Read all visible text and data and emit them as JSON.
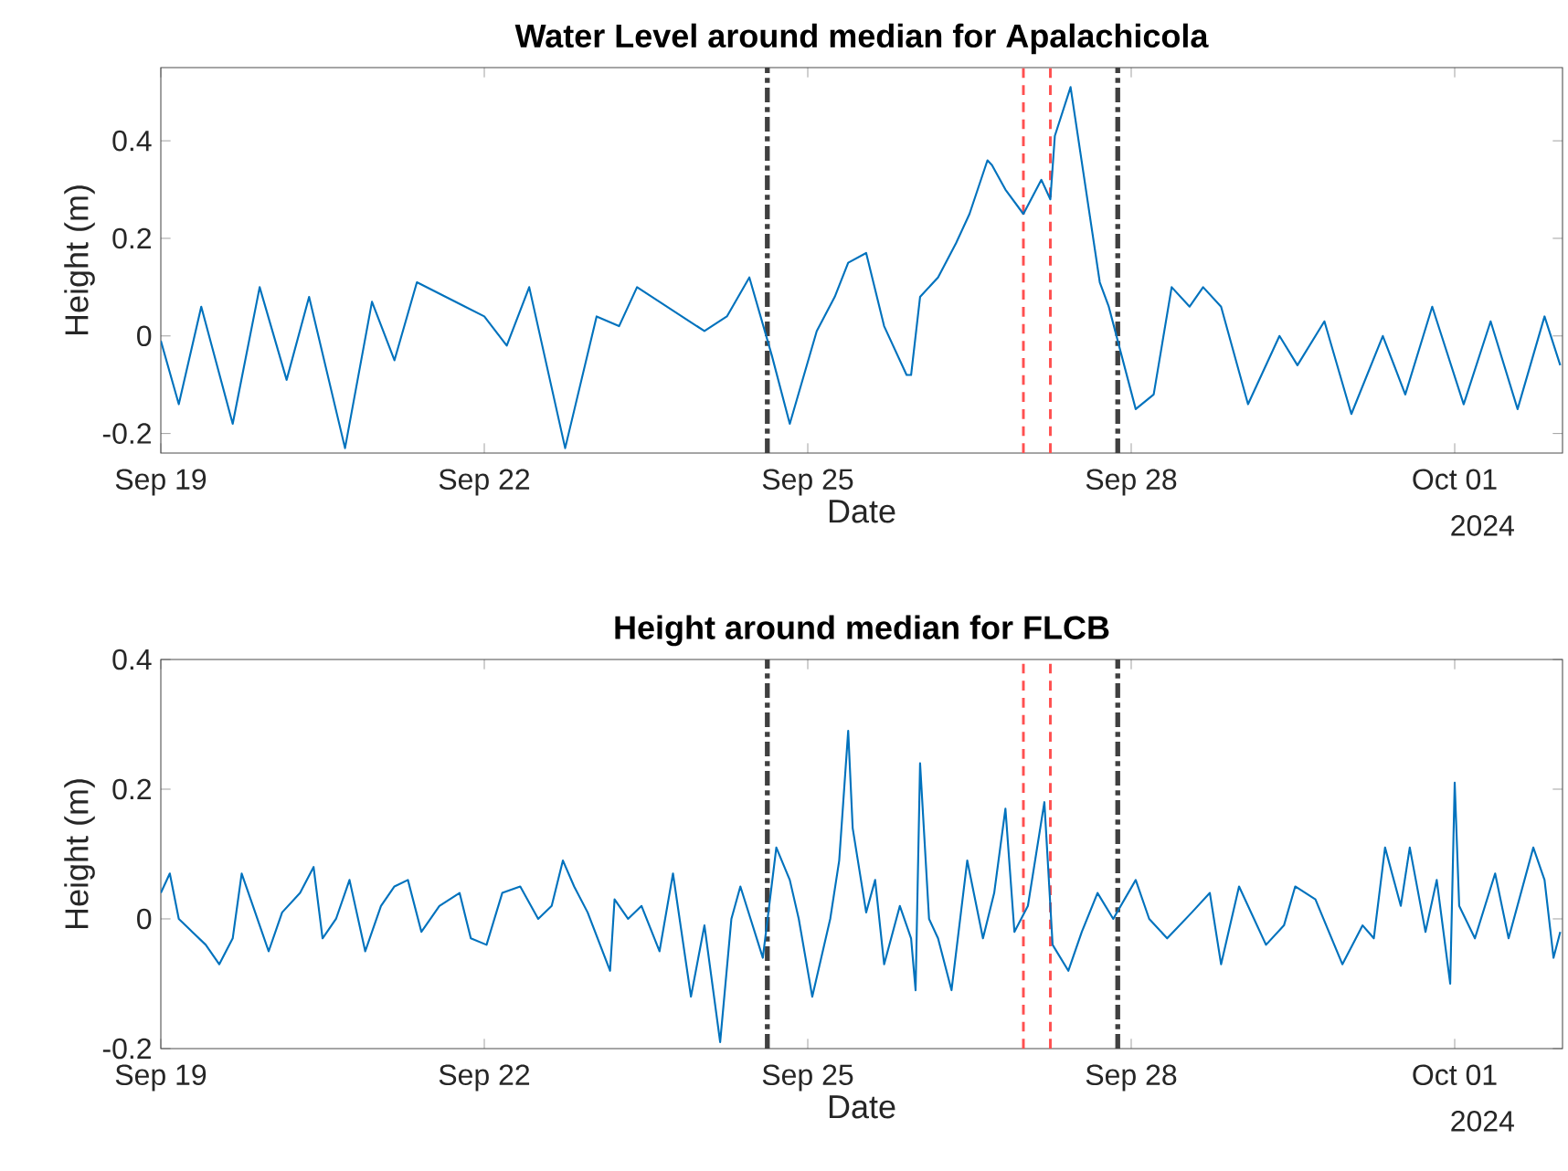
{
  "chart_data": [
    {
      "type": "line",
      "title": "Water Level around median for Apalachicola",
      "xlabel": "Date",
      "ylabel": "Height (m)",
      "color": "#0072bd",
      "x": [
        "2024-09-19T00:00",
        "2024-09-19T04:00",
        "2024-09-19T09:00",
        "2024-09-19T16:00",
        "2024-09-19T22:00",
        "2024-09-20T04:00",
        "2024-09-20T09:00",
        "2024-09-20T17:00",
        "2024-09-20T23:00",
        "2024-09-21T04:00",
        "2024-09-21T09:00",
        "2024-09-21T18:00",
        "2024-09-22T00:00",
        "2024-09-22T05:00",
        "2024-09-22T10:00",
        "2024-09-22T18:00",
        "2024-09-23T01:00",
        "2024-09-23T06:00",
        "2024-09-23T10:00",
        "2024-09-23T19:00",
        "2024-09-24T01:00",
        "2024-09-24T06:00",
        "2024-09-24T11:00",
        "2024-09-24T16:00",
        "2024-09-24T20:00",
        "2024-09-25T02:00",
        "2024-09-25T06:00",
        "2024-09-25T09:00",
        "2024-09-25T13:00",
        "2024-09-25T17:00",
        "2024-09-25T22:00",
        "2024-09-25T23:00",
        "2024-09-26T01:00",
        "2024-09-26T05:00",
        "2024-09-26T09:00",
        "2024-09-26T12:00",
        "2024-09-26T16:00",
        "2024-09-26T17:00",
        "2024-09-26T20:00",
        "2024-09-27T00:00",
        "2024-09-27T04:00",
        "2024-09-27T06:00",
        "2024-09-27T07:00",
        "2024-09-27T08:30",
        "2024-09-27T10:30",
        "2024-09-27T17:00",
        "2024-09-27T19:00",
        "2024-09-28T01:00",
        "2024-09-28T05:00",
        "2024-09-28T09:00",
        "2024-09-28T13:00",
        "2024-09-28T16:00",
        "2024-09-28T20:00",
        "2024-09-29T02:00",
        "2024-09-29T09:00",
        "2024-09-29T13:00",
        "2024-09-29T19:00",
        "2024-09-30T01:00",
        "2024-09-30T08:00",
        "2024-09-30T13:00",
        "2024-09-30T19:00",
        "2024-10-01T02:00",
        "2024-10-01T08:00",
        "2024-10-01T14:00",
        "2024-10-01T20:00",
        "2024-10-01T23:30"
      ],
      "values": [
        -0.01,
        -0.14,
        0.06,
        -0.18,
        0.1,
        -0.09,
        0.08,
        -0.23,
        0.07,
        -0.05,
        0.11,
        null,
        0.04,
        -0.02,
        0.1,
        -0.23,
        0.04,
        0.02,
        0.1,
        null,
        0.01,
        0.04,
        0.12,
        -0.04,
        -0.18,
        0.01,
        0.08,
        0.15,
        0.17,
        0.02,
        -0.08,
        -0.08,
        0.08,
        0.12,
        0.19,
        0.25,
        0.36,
        0.35,
        0.3,
        0.25,
        0.32,
        0.28,
        0.41,
        null,
        0.51,
        0.11,
        0.06,
        -0.15,
        -0.12,
        0.1,
        0.06,
        0.1,
        0.06,
        -0.14,
        0.0,
        -0.06,
        0.03,
        -0.16,
        0.0,
        -0.12,
        0.06,
        -0.14,
        0.03,
        -0.15,
        0.04,
        -0.06
      ],
      "xlim": [
        "2024-09-19T00:00",
        "2024-10-02T00:00"
      ],
      "xticks": [
        {
          "value": "2024-09-19",
          "label": "Sep 19"
        },
        {
          "value": "2024-09-22",
          "label": "Sep 22"
        },
        {
          "value": "2024-09-25",
          "label": "Sep 25"
        },
        {
          "value": "2024-09-28",
          "label": "Sep 28"
        },
        {
          "value": "2024-10-01",
          "label": "Oct 01"
        }
      ],
      "ylim": [
        -0.24,
        0.55
      ],
      "yticks": [
        -0.2,
        0,
        0.2,
        0.4
      ],
      "ref_lines": [
        {
          "axis": "x",
          "value": "2024-09-24T15:00",
          "color": "#404040",
          "line_style": "dashdot"
        },
        {
          "axis": "x",
          "value": "2024-09-27T00:00",
          "color": "#ff5050",
          "line_style": "dashed"
        },
        {
          "axis": "x",
          "value": "2024-09-27T06:00",
          "color": "#ff5050",
          "line_style": "dashed"
        },
        {
          "axis": "x",
          "value": "2024-09-27T21:00",
          "color": "#404040",
          "line_style": "dashdot"
        }
      ],
      "annotations": [
        "2024"
      ]
    },
    {
      "type": "line",
      "title": "Height around median for FLCB",
      "xlabel": "Date",
      "ylabel": "Height (m)",
      "color": "#0072bd",
      "x": [
        "2024-09-19T00:00",
        "2024-09-19T02:00",
        "2024-09-19T04:00",
        "2024-09-19T07:00",
        "2024-09-19T10:00",
        "2024-09-19T13:00",
        "2024-09-19T16:00",
        "2024-09-19T18:00",
        "2024-09-19T20:00",
        "2024-09-20T00:00",
        "2024-09-20T03:00",
        "2024-09-20T07:00",
        "2024-09-20T10:00",
        "2024-09-20T12:00",
        "2024-09-20T15:00",
        "2024-09-20T18:00",
        "2024-09-20T21:30",
        "2024-09-21T01:00",
        "2024-09-21T04:00",
        "2024-09-21T07:00",
        "2024-09-21T10:00",
        "2024-09-21T14:00",
        "2024-09-21T18:30",
        "2024-09-21T21:00",
        "2024-09-22T00:30",
        "2024-09-22T04:00",
        "2024-09-22T08:00",
        "2024-09-22T12:00",
        "2024-09-22T15:00",
        "2024-09-22T17:30",
        "2024-09-22T20:00",
        "2024-09-22T23:00",
        "2024-09-23T04:00",
        "2024-09-23T05:00",
        "2024-09-23T08:00",
        "2024-09-23T11:00",
        "2024-09-23T15:00",
        "2024-09-23T18:00",
        "2024-09-23T22:00",
        "2024-09-24T01:00",
        "2024-09-24T04:30",
        "2024-09-24T07:00",
        "2024-09-24T09:00",
        "2024-09-24T14:00",
        "2024-09-24T17:00",
        "2024-09-24T20:00",
        "2024-09-24T22:00",
        "2024-09-25T01:00",
        "2024-09-25T05:00",
        "2024-09-25T07:00",
        "2024-09-25T09:00",
        "2024-09-25T10:00",
        "2024-09-25T13:00",
        "2024-09-25T15:00",
        "2024-09-25T17:00",
        "2024-09-25T20:30",
        "2024-09-25T23:00",
        "2024-09-26T00:00",
        "2024-09-26T01:00",
        "2024-09-26T03:00",
        "2024-09-26T05:00",
        "2024-09-26T08:00",
        "2024-09-26T11:30",
        "2024-09-26T15:00",
        "2024-09-26T17:30",
        "2024-09-26T20:00",
        "2024-09-26T22:00",
        "2024-09-27T01:00",
        "2024-09-27T04:40",
        "2024-09-27T06:30",
        "2024-09-27T10:00",
        "2024-09-27T13:00",
        "2024-09-27T16:30",
        "2024-09-27T20:00",
        "2024-09-28T01:00",
        "2024-09-28T04:00",
        "2024-09-28T08:00",
        "2024-09-28T13:30",
        "2024-09-28T17:30",
        "2024-09-28T20:00",
        "2024-09-29T00:00",
        "2024-09-29T06:00",
        "2024-09-29T10:00",
        "2024-09-29T12:30",
        "2024-09-29T17:00",
        "2024-09-29T23:00",
        "2024-09-30T03:30",
        "2024-09-30T06:00",
        "2024-09-30T08:30",
        "2024-09-30T12:00",
        "2024-09-30T14:00",
        "2024-09-30T17:30",
        "2024-09-30T20:00",
        "2024-09-30T23:00",
        "2024-10-01T00:00",
        "2024-10-01T01:00",
        "2024-10-01T04:30",
        "2024-10-01T09:00",
        "2024-10-01T12:00",
        "2024-10-01T17:30",
        "2024-10-01T20:00",
        "2024-10-01T22:00",
        "2024-10-01T23:30"
      ],
      "values": [
        0.04,
        0.07,
        0.0,
        -0.02,
        -0.04,
        -0.07,
        -0.03,
        0.07,
        0.03,
        -0.05,
        0.01,
        0.04,
        0.08,
        -0.03,
        0.0,
        0.06,
        -0.05,
        0.02,
        0.05,
        0.06,
        -0.02,
        0.02,
        0.04,
        -0.03,
        -0.04,
        0.04,
        0.05,
        0.0,
        0.02,
        0.09,
        0.05,
        0.01,
        -0.08,
        0.03,
        0.0,
        0.02,
        -0.05,
        0.07,
        -0.12,
        -0.01,
        -0.19,
        0.0,
        0.05,
        -0.06,
        0.11,
        0.06,
        0.0,
        -0.12,
        0.0,
        0.09,
        0.29,
        0.14,
        0.01,
        0.06,
        -0.07,
        0.02,
        -0.03,
        -0.11,
        0.24,
        0.0,
        -0.03,
        -0.11,
        0.09,
        -0.03,
        0.04,
        0.17,
        -0.02,
        0.02,
        0.18,
        -0.04,
        -0.08,
        -0.02,
        0.04,
        0.0,
        0.06,
        0.0,
        -0.03,
        0.01,
        0.04,
        -0.07,
        0.05,
        -0.04,
        -0.01,
        0.05,
        0.03,
        -0.07,
        -0.01,
        -0.03,
        0.11,
        0.02,
        0.11,
        -0.02,
        0.06,
        -0.1,
        0.21,
        0.02,
        -0.03,
        0.07,
        -0.03,
        0.11,
        0.06,
        -0.06,
        -0.02
      ],
      "xlim": [
        "2024-09-19T00:00",
        "2024-10-02T00:00"
      ],
      "xticks": [
        {
          "value": "2024-09-19",
          "label": "Sep 19"
        },
        {
          "value": "2024-09-22",
          "label": "Sep 22"
        },
        {
          "value": "2024-09-25",
          "label": "Sep 25"
        },
        {
          "value": "2024-09-28",
          "label": "Sep 28"
        },
        {
          "value": "2024-10-01",
          "label": "Oct 01"
        }
      ],
      "ylim": [
        -0.2,
        0.4
      ],
      "yticks": [
        -0.2,
        0,
        0.2,
        0.4
      ],
      "ref_lines": [
        {
          "axis": "x",
          "value": "2024-09-24T15:00",
          "color": "#404040",
          "line_style": "dashdot"
        },
        {
          "axis": "x",
          "value": "2024-09-27T00:00",
          "color": "#ff5050",
          "line_style": "dashed"
        },
        {
          "axis": "x",
          "value": "2024-09-27T06:00",
          "color": "#ff5050",
          "line_style": "dashed"
        },
        {
          "axis": "x",
          "value": "2024-09-27T21:00",
          "color": "#404040",
          "line_style": "dashdot"
        }
      ],
      "annotations": [
        "2024"
      ]
    }
  ]
}
